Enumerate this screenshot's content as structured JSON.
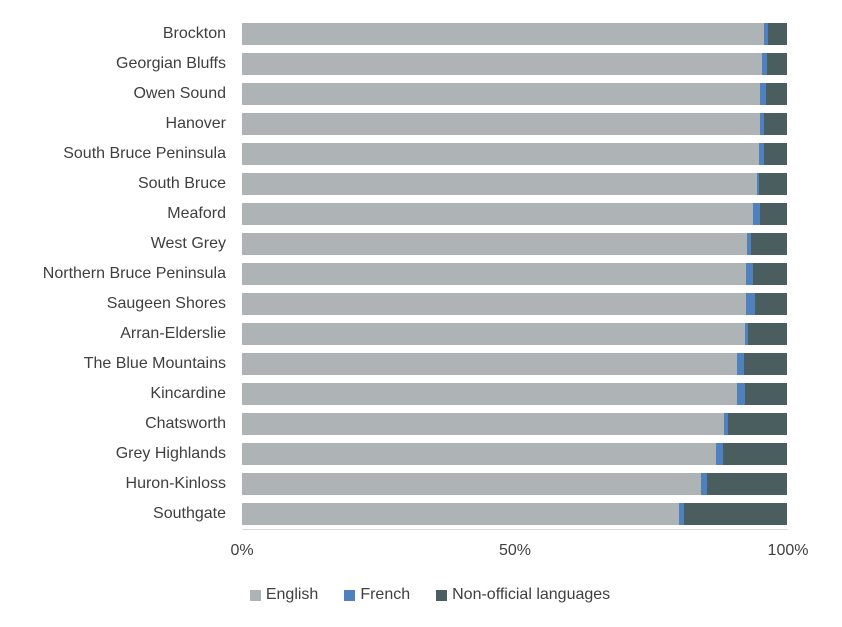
{
  "chart_data": {
    "type": "bar",
    "orientation": "horizontal",
    "stacked": true,
    "unit": "percent",
    "xlim": [
      0,
      100
    ],
    "x_ticks": [
      "0%",
      "50%",
      "100%"
    ],
    "grid": false,
    "legend_position": "bottom",
    "categories": [
      "Brockton",
      "Georgian Bluffs",
      "Owen Sound",
      "Hanover",
      "South Bruce Peninsula",
      "South Bruce",
      "Meaford",
      "West Grey",
      "Northern Bruce Peninsula",
      "Saugeen Shores",
      "Arran-Elderslie",
      "The Blue Mountains",
      "Kincardine",
      "Chatsworth",
      "Grey Highlands",
      "Huron-Kinloss",
      "Southgate"
    ],
    "series": [
      {
        "name": "English",
        "color": "#aeb4b6",
        "values": [
          95.8,
          95.5,
          95.1,
          95.0,
          94.9,
          94.5,
          93.8,
          92.6,
          92.5,
          92.4,
          92.3,
          90.9,
          90.8,
          88.4,
          87.0,
          84.3,
          80.1
        ]
      },
      {
        "name": "French",
        "color": "#4e81bd",
        "values": [
          0.7,
          0.8,
          1.0,
          0.8,
          0.8,
          0.4,
          1.2,
          0.8,
          1.3,
          1.7,
          0.5,
          1.2,
          1.5,
          0.7,
          1.2,
          1.0,
          1.0
        ]
      },
      {
        "name": "Non-official languages",
        "color": "#4a5d5f",
        "values": [
          3.5,
          3.7,
          3.9,
          4.2,
          4.3,
          5.1,
          5.0,
          6.6,
          6.2,
          5.9,
          7.2,
          7.9,
          7.7,
          10.9,
          11.8,
          14.7,
          18.9
        ]
      }
    ]
  },
  "colors": {
    "background": "#ffffff",
    "label_text": "#3f3f3f",
    "axis_text": "#404040",
    "axis_line": "#d9d9d9"
  }
}
